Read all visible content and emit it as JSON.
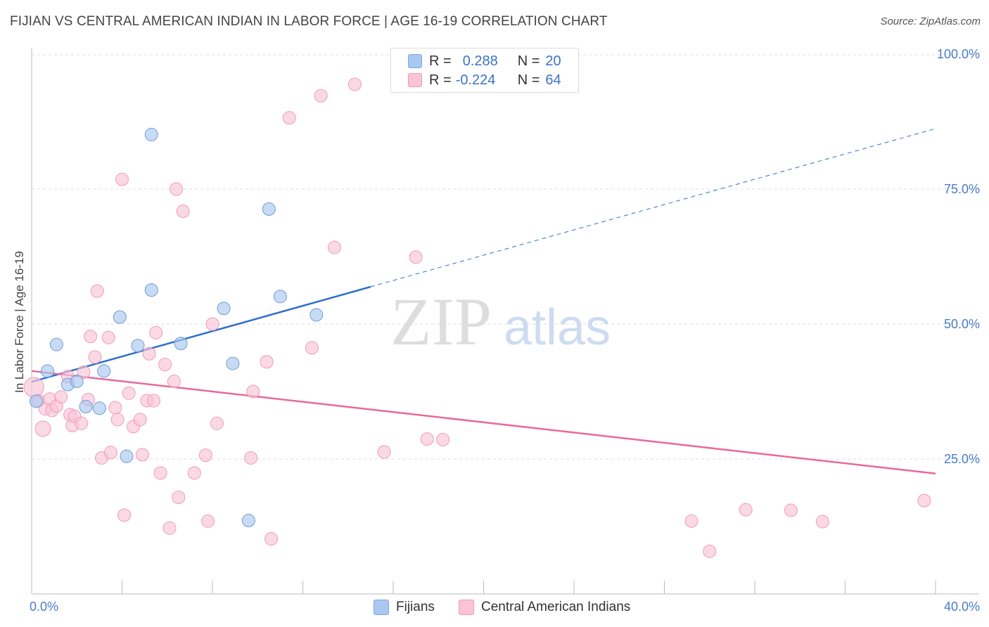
{
  "title": "FIJIAN VS CENTRAL AMERICAN INDIAN IN LABOR FORCE | AGE 16-19 CORRELATION CHART",
  "source": "Source: ZipAtlas.com",
  "watermark": {
    "zip": "ZIP",
    "atlas": "atlas"
  },
  "legend": {
    "rows": [
      {
        "r_label": "R =",
        "r_value": "0.288",
        "n_label": "N =",
        "n_value": "20",
        "color": "#a9c8f0",
        "border": "#7aa7e0"
      },
      {
        "r_label": "R =",
        "r_value": "-0.224",
        "n_label": "N =",
        "n_value": "64",
        "color": "#f9c5d5",
        "border": "#f09ab5"
      }
    ]
  },
  "bottom_legend": {
    "fijians": "Fijians",
    "central_american_indians": "Central American Indians"
  },
  "chart_data": {
    "type": "scatter",
    "title": "FIJIAN VS CENTRAL AMERICAN INDIAN IN LABOR FORCE | AGE 16-19 CORRELATION CHART",
    "xlabel": "",
    "ylabel": "In Labor Force | Age 16-19",
    "xlim": [
      0,
      40
    ],
    "ylim": [
      0,
      102
    ],
    "x_tick_labels": [
      {
        "value": 0,
        "label": "0.0%"
      },
      {
        "value": 40,
        "label": "40.0%"
      }
    ],
    "y_tick_labels": [
      {
        "value": 25,
        "label": "25.0%"
      },
      {
        "value": 50,
        "label": "50.0%"
      },
      {
        "value": 75,
        "label": "75.0%"
      },
      {
        "value": 100,
        "label": "100.0%"
      }
    ],
    "grid": "horizontal dashed",
    "legend_position": "top-center",
    "colors": {
      "fijians": "#a9c8f0",
      "fijians_line": "#2f6fcc",
      "central": "#f9c5d5",
      "central_line": "#e8699a"
    },
    "series": [
      {
        "name": "Fijians",
        "points": [
          [
            0.2,
            35.7
          ],
          [
            0.7,
            41.3
          ],
          [
            1.1,
            46.2
          ],
          [
            1.6,
            38.8
          ],
          [
            2.0,
            39.4
          ],
          [
            2.4,
            34.7
          ],
          [
            3.0,
            34.4
          ],
          [
            3.2,
            41.3
          ],
          [
            3.9,
            51.3
          ],
          [
            4.2,
            25.5
          ],
          [
            4.7,
            46.0
          ],
          [
            5.3,
            56.3
          ],
          [
            5.3,
            85.1
          ],
          [
            6.6,
            46.4
          ],
          [
            8.5,
            52.9
          ],
          [
            8.9,
            42.7
          ],
          [
            9.6,
            13.6
          ],
          [
            10.5,
            71.3
          ],
          [
            11.0,
            55.1
          ],
          [
            12.6,
            51.7
          ]
        ],
        "trend": {
          "x0": 0,
          "y0": 39.3,
          "x1": 15.0,
          "y1": 56.9,
          "dashed_to_x": 40,
          "dashed_to_y": 86.2
        }
      },
      {
        "name": "Central American Indians",
        "points": [
          [
            0.1,
            38.3
          ],
          [
            0.3,
            35.8
          ],
          [
            0.5,
            30.6
          ],
          [
            0.6,
            34.3
          ],
          [
            0.8,
            36.1
          ],
          [
            0.9,
            34.0
          ],
          [
            1.1,
            34.8
          ],
          [
            1.3,
            36.5
          ],
          [
            1.6,
            40.3
          ],
          [
            1.7,
            33.2
          ],
          [
            1.8,
            31.2
          ],
          [
            1.9,
            32.9
          ],
          [
            2.2,
            31.6
          ],
          [
            2.3,
            41.1
          ],
          [
            2.5,
            36.0
          ],
          [
            2.6,
            47.7
          ],
          [
            2.8,
            43.9
          ],
          [
            2.9,
            56.1
          ],
          [
            3.1,
            25.2
          ],
          [
            3.4,
            47.5
          ],
          [
            3.5,
            26.2
          ],
          [
            3.7,
            34.5
          ],
          [
            3.8,
            32.3
          ],
          [
            4.0,
            76.8
          ],
          [
            4.1,
            14.6
          ],
          [
            4.3,
            37.2
          ],
          [
            4.5,
            31.0
          ],
          [
            4.8,
            32.3
          ],
          [
            4.9,
            25.8
          ],
          [
            5.1,
            35.8
          ],
          [
            5.2,
            44.5
          ],
          [
            5.4,
            35.8
          ],
          [
            5.5,
            48.4
          ],
          [
            5.7,
            22.4
          ],
          [
            5.9,
            42.5
          ],
          [
            6.1,
            12.2
          ],
          [
            6.3,
            39.4
          ],
          [
            6.4,
            75.0
          ],
          [
            6.5,
            17.9
          ],
          [
            6.7,
            70.9
          ],
          [
            7.2,
            22.4
          ],
          [
            7.7,
            25.7
          ],
          [
            7.8,
            13.5
          ],
          [
            8.0,
            50.0
          ],
          [
            8.2,
            31.6
          ],
          [
            9.7,
            25.2
          ],
          [
            9.8,
            37.5
          ],
          [
            10.4,
            43.0
          ],
          [
            10.6,
            10.2
          ],
          [
            11.4,
            88.2
          ],
          [
            12.4,
            45.6
          ],
          [
            12.8,
            92.3
          ],
          [
            13.4,
            64.2
          ],
          [
            14.3,
            94.4
          ],
          [
            15.6,
            26.3
          ],
          [
            17.0,
            62.4
          ],
          [
            17.5,
            28.7
          ],
          [
            18.2,
            28.6
          ],
          [
            29.2,
            13.5
          ],
          [
            30.0,
            7.9
          ],
          [
            31.6,
            15.6
          ],
          [
            33.6,
            15.5
          ],
          [
            35.0,
            13.4
          ],
          [
            39.5,
            17.3
          ]
        ],
        "trend": {
          "x0": 0,
          "y0": 41.3,
          "x1": 40,
          "y1": 22.3
        }
      }
    ]
  }
}
